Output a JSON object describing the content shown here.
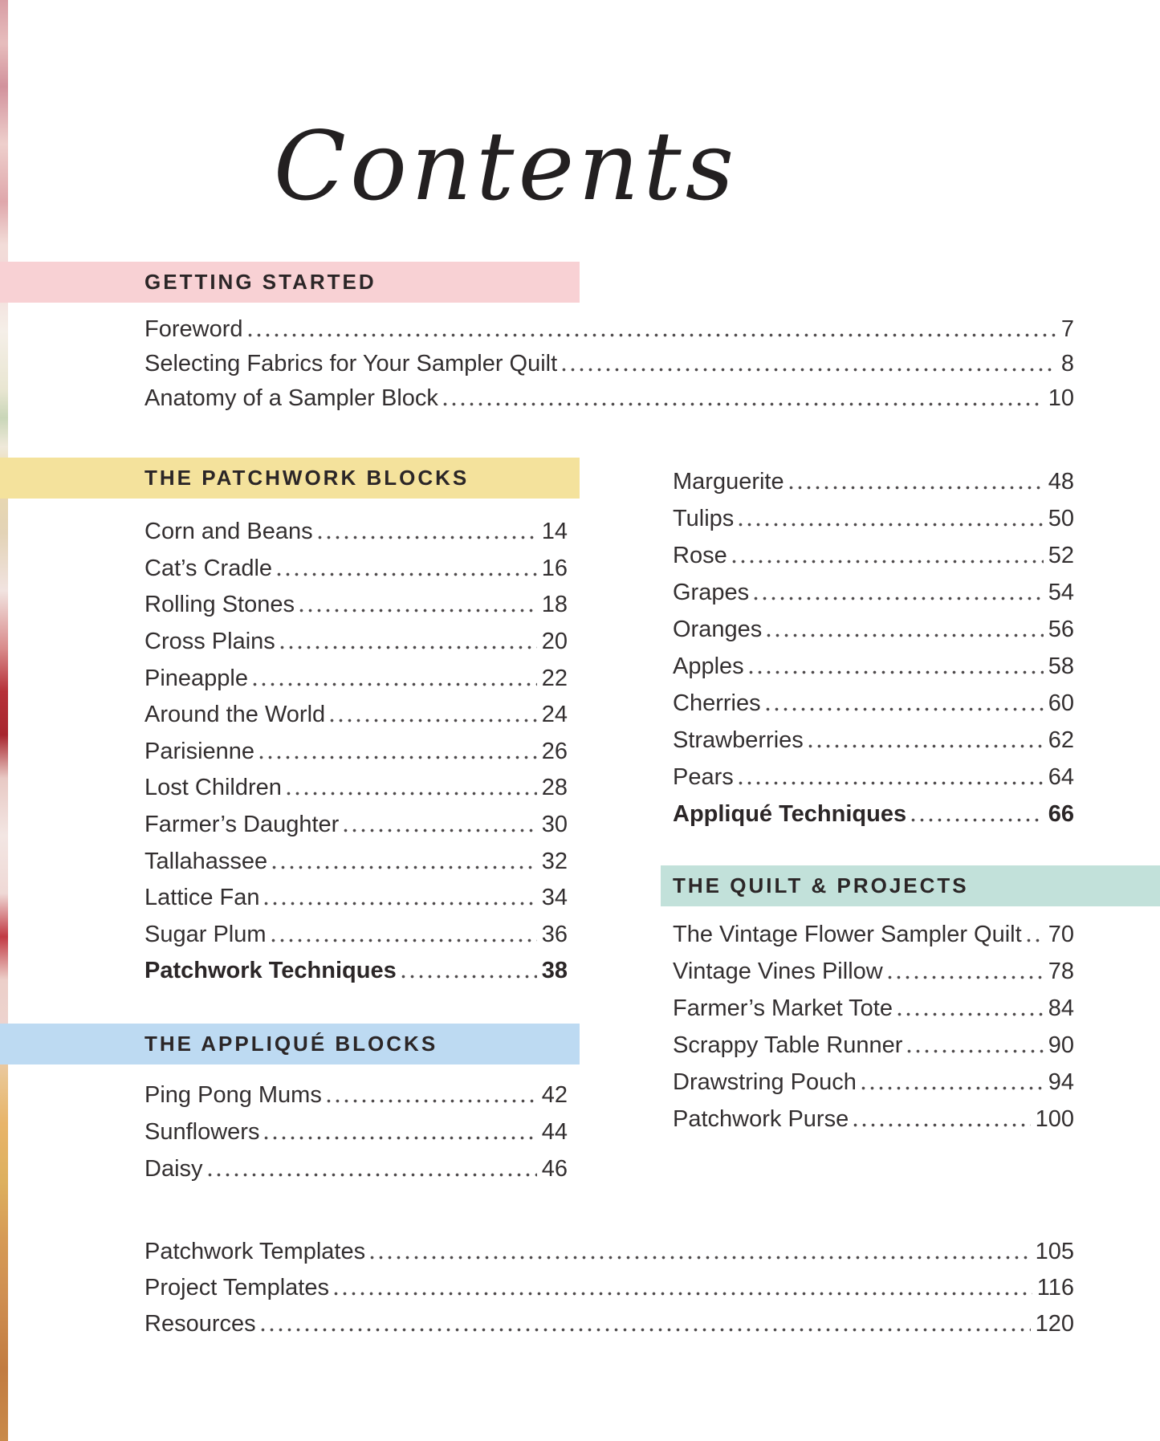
{
  "page": {
    "title": "Contents"
  },
  "accent_colors": {
    "pink": "#f8d1d4",
    "yellow": "#f4e29c",
    "blue": "#bddaf2",
    "teal": "#c2e1da",
    "heading_text": "#2b2627",
    "body_text": "#332f30"
  },
  "sections": {
    "getting_started": {
      "label": "GETTING STARTED",
      "entries": [
        {
          "title": "Foreword",
          "page": "7"
        },
        {
          "title": "Selecting Fabrics for Your Sampler Quilt",
          "page": "8"
        },
        {
          "title": "Anatomy of a Sampler Block",
          "page": "10"
        }
      ]
    },
    "patchwork_blocks": {
      "label": "THE PATCHWORK BLOCKS",
      "entries": [
        {
          "title": "Corn and Beans",
          "page": "14"
        },
        {
          "title": "Cat’s Cradle",
          "page": "16"
        },
        {
          "title": "Rolling Stones",
          "page": "18"
        },
        {
          "title": "Cross Plains",
          "page": "20"
        },
        {
          "title": "Pineapple",
          "page": "22"
        },
        {
          "title": "Around the World",
          "page": "24"
        },
        {
          "title": "Parisienne",
          "page": "26"
        },
        {
          "title": "Lost Children",
          "page": "28"
        },
        {
          "title": "Farmer’s Daughter",
          "page": "30"
        },
        {
          "title": "Tallahassee",
          "page": "32"
        },
        {
          "title": "Lattice Fan",
          "page": "34"
        },
        {
          "title": "Sugar Plum",
          "page": "36"
        },
        {
          "title": "Patchwork Techniques",
          "page": "38",
          "bold": true
        }
      ]
    },
    "applique_blocks": {
      "label": "THE APPLIQUÉ BLOCKS",
      "entries_left_column": [
        {
          "title": "Ping Pong Mums",
          "page": "42"
        },
        {
          "title": "Sunflowers",
          "page": "44"
        },
        {
          "title": "Daisy",
          "page": "46"
        }
      ],
      "entries_right_column": [
        {
          "title": "Marguerite",
          "page": "48"
        },
        {
          "title": "Tulips",
          "page": "50"
        },
        {
          "title": "Rose",
          "page": "52"
        },
        {
          "title": "Grapes",
          "page": "54"
        },
        {
          "title": "Oranges",
          "page": "56"
        },
        {
          "title": "Apples",
          "page": "58"
        },
        {
          "title": "Cherries",
          "page": "60"
        },
        {
          "title": "Strawberries",
          "page": "62"
        },
        {
          "title": "Pears",
          "page": "64"
        },
        {
          "title": "Appliqué Techniques",
          "page": "66",
          "bold": true
        }
      ]
    },
    "quilt_and_projects": {
      "label": "THE QUILT & PROJECTS",
      "entries": [
        {
          "title": "The Vintage Flower Sampler Quilt",
          "page": "70"
        },
        {
          "title": "Vintage Vines Pillow",
          "page": "78"
        },
        {
          "title": "Farmer’s Market Tote",
          "page": "84"
        },
        {
          "title": "Scrappy Table Runner",
          "page": "90"
        },
        {
          "title": "Drawstring Pouch",
          "page": "94"
        },
        {
          "title": "Patchwork Purse",
          "page": "100"
        }
      ]
    },
    "footer": {
      "entries": [
        {
          "title": "Patchwork Templates",
          "page": "105"
        },
        {
          "title": "Project Templates",
          "page": "116"
        },
        {
          "title": "Resources",
          "page": "120"
        }
      ]
    }
  }
}
